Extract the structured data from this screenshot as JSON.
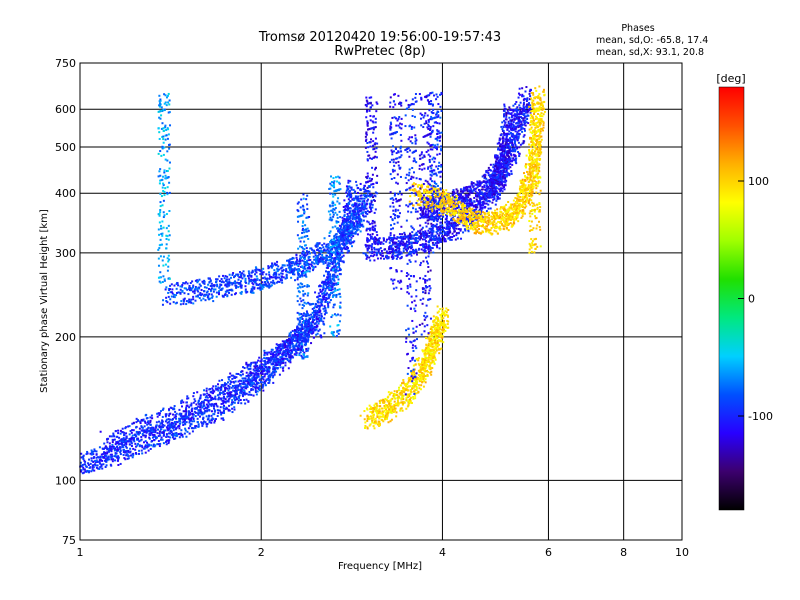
{
  "chart_data": {
    "type": "scatter",
    "title": "Tromsø 20120420 19:56:00-19:57:43",
    "subtitle": "RwPretec (8p)",
    "xlabel": "Frequency [MHz]",
    "ylabel": "Stationary phase Virtual Height [km]",
    "x_scale": "log",
    "y_scale": "log",
    "xlim": [
      1,
      10
    ],
    "ylim": [
      75,
      750
    ],
    "x_ticks": [
      1,
      2,
      4,
      6,
      8,
      10
    ],
    "y_ticks": [
      75,
      100,
      200,
      300,
      400,
      500,
      600,
      750
    ],
    "grid": true,
    "stats": {
      "header": "Phases",
      "line_o": "mean, sd,O:  -65.8, 17.4",
      "line_x": "mean, sd,X:  93.1, 20.8"
    },
    "colorbar": {
      "label": "[deg]",
      "range": [
        -180,
        180
      ],
      "ticks": [
        100,
        0,
        -100
      ],
      "colors": [
        "#000000",
        "#3c006e",
        "#2800ff",
        "#0050ff",
        "#00d0ff",
        "#00e880",
        "#20e000",
        "#a0ff00",
        "#ffff00",
        "#ffb000",
        "#ff5000",
        "#ff0000"
      ]
    },
    "traces": [
      {
        "name": "",
        "phase": -95,
        "points": [
          [
            1.0,
            108
          ],
          [
            1.1,
            112
          ],
          [
            1.2,
            118
          ],
          [
            1.35,
            124
          ],
          [
            1.5,
            132
          ],
          [
            1.7,
            142
          ],
          [
            1.9,
            155
          ],
          [
            2.05,
            168
          ],
          [
            2.2,
            185
          ],
          [
            2.35,
            205
          ],
          [
            2.5,
            230
          ],
          [
            2.6,
            260
          ],
          [
            2.7,
            300
          ],
          [
            2.8,
            350
          ],
          [
            2.85,
            410
          ]
        ]
      },
      {
        "name": "",
        "phase": -100,
        "points": [
          [
            1.1,
            120
          ],
          [
            1.3,
            130
          ],
          [
            1.5,
            140
          ],
          [
            1.7,
            152
          ],
          [
            1.9,
            165
          ],
          [
            2.1,
            180
          ],
          [
            2.3,
            195
          ],
          [
            2.5,
            215
          ]
        ]
      },
      {
        "name": "",
        "phase": -90,
        "points": [
          [
            1.4,
            245
          ],
          [
            1.6,
            250
          ],
          [
            1.8,
            258
          ],
          [
            2.0,
            265
          ],
          [
            2.2,
            275
          ],
          [
            2.4,
            290
          ],
          [
            2.6,
            305
          ],
          [
            2.8,
            330
          ],
          [
            2.9,
            360
          ],
          [
            3.0,
            400
          ]
        ]
      },
      {
        "name": "",
        "phase": -105,
        "points": [
          [
            3.0,
            305
          ],
          [
            3.3,
            308
          ],
          [
            3.6,
            315
          ],
          [
            3.9,
            325
          ],
          [
            4.2,
            340
          ],
          [
            4.5,
            365
          ],
          [
            4.8,
            395
          ],
          [
            5.0,
            430
          ],
          [
            5.2,
            480
          ],
          [
            5.4,
            560
          ],
          [
            5.5,
            640
          ]
        ]
      },
      {
        "name": "",
        "phase": -110,
        "points": [
          [
            3.7,
            370
          ],
          [
            3.9,
            375
          ],
          [
            4.2,
            382
          ],
          [
            4.5,
            395
          ],
          [
            4.8,
            420
          ],
          [
            5.0,
            460
          ],
          [
            5.1,
            520
          ],
          [
            5.2,
            600
          ]
        ]
      },
      {
        "name": "",
        "phase": 95,
        "points": [
          [
            3.0,
            135
          ],
          [
            3.2,
            140
          ],
          [
            3.4,
            148
          ],
          [
            3.6,
            160
          ],
          [
            3.75,
            175
          ],
          [
            3.85,
            190
          ],
          [
            3.95,
            205
          ],
          [
            4.0,
            222
          ]
        ]
      },
      {
        "name": "",
        "phase": 100,
        "points": [
          [
            3.6,
            400
          ],
          [
            3.9,
            390
          ],
          [
            4.2,
            370
          ],
          [
            4.5,
            350
          ],
          [
            4.8,
            345
          ],
          [
            5.1,
            355
          ],
          [
            5.3,
            370
          ],
          [
            5.5,
            400
          ],
          [
            5.65,
            450
          ],
          [
            5.75,
            530
          ],
          [
            5.8,
            640
          ]
        ]
      }
    ],
    "column_traces": [
      {
        "name": "",
        "phase": -110,
        "x": 3.05,
        "ymin": 300,
        "ymax": 650
      },
      {
        "name": "",
        "phase": -105,
        "x": 3.35,
        "ymin": 250,
        "ymax": 650
      },
      {
        "name": "",
        "phase": -100,
        "x": 3.55,
        "ymin": 150,
        "ymax": 650
      },
      {
        "name": "",
        "phase": -110,
        "x": 3.75,
        "ymin": 200,
        "ymax": 650
      },
      {
        "name": "",
        "phase": -95,
        "x": 3.9,
        "ymin": 300,
        "ymax": 650
      },
      {
        "name": "",
        "phase": -80,
        "x": 2.35,
        "ymin": 180,
        "ymax": 400
      },
      {
        "name": "",
        "phase": -70,
        "x": 2.65,
        "ymin": 200,
        "ymax": 450
      },
      {
        "name": "",
        "phase": 95,
        "x": 5.7,
        "ymin": 300,
        "ymax": 650
      },
      {
        "name": "",
        "phase": -60,
        "x": 1.38,
        "ymin": 250,
        "ymax": 650
      }
    ]
  }
}
